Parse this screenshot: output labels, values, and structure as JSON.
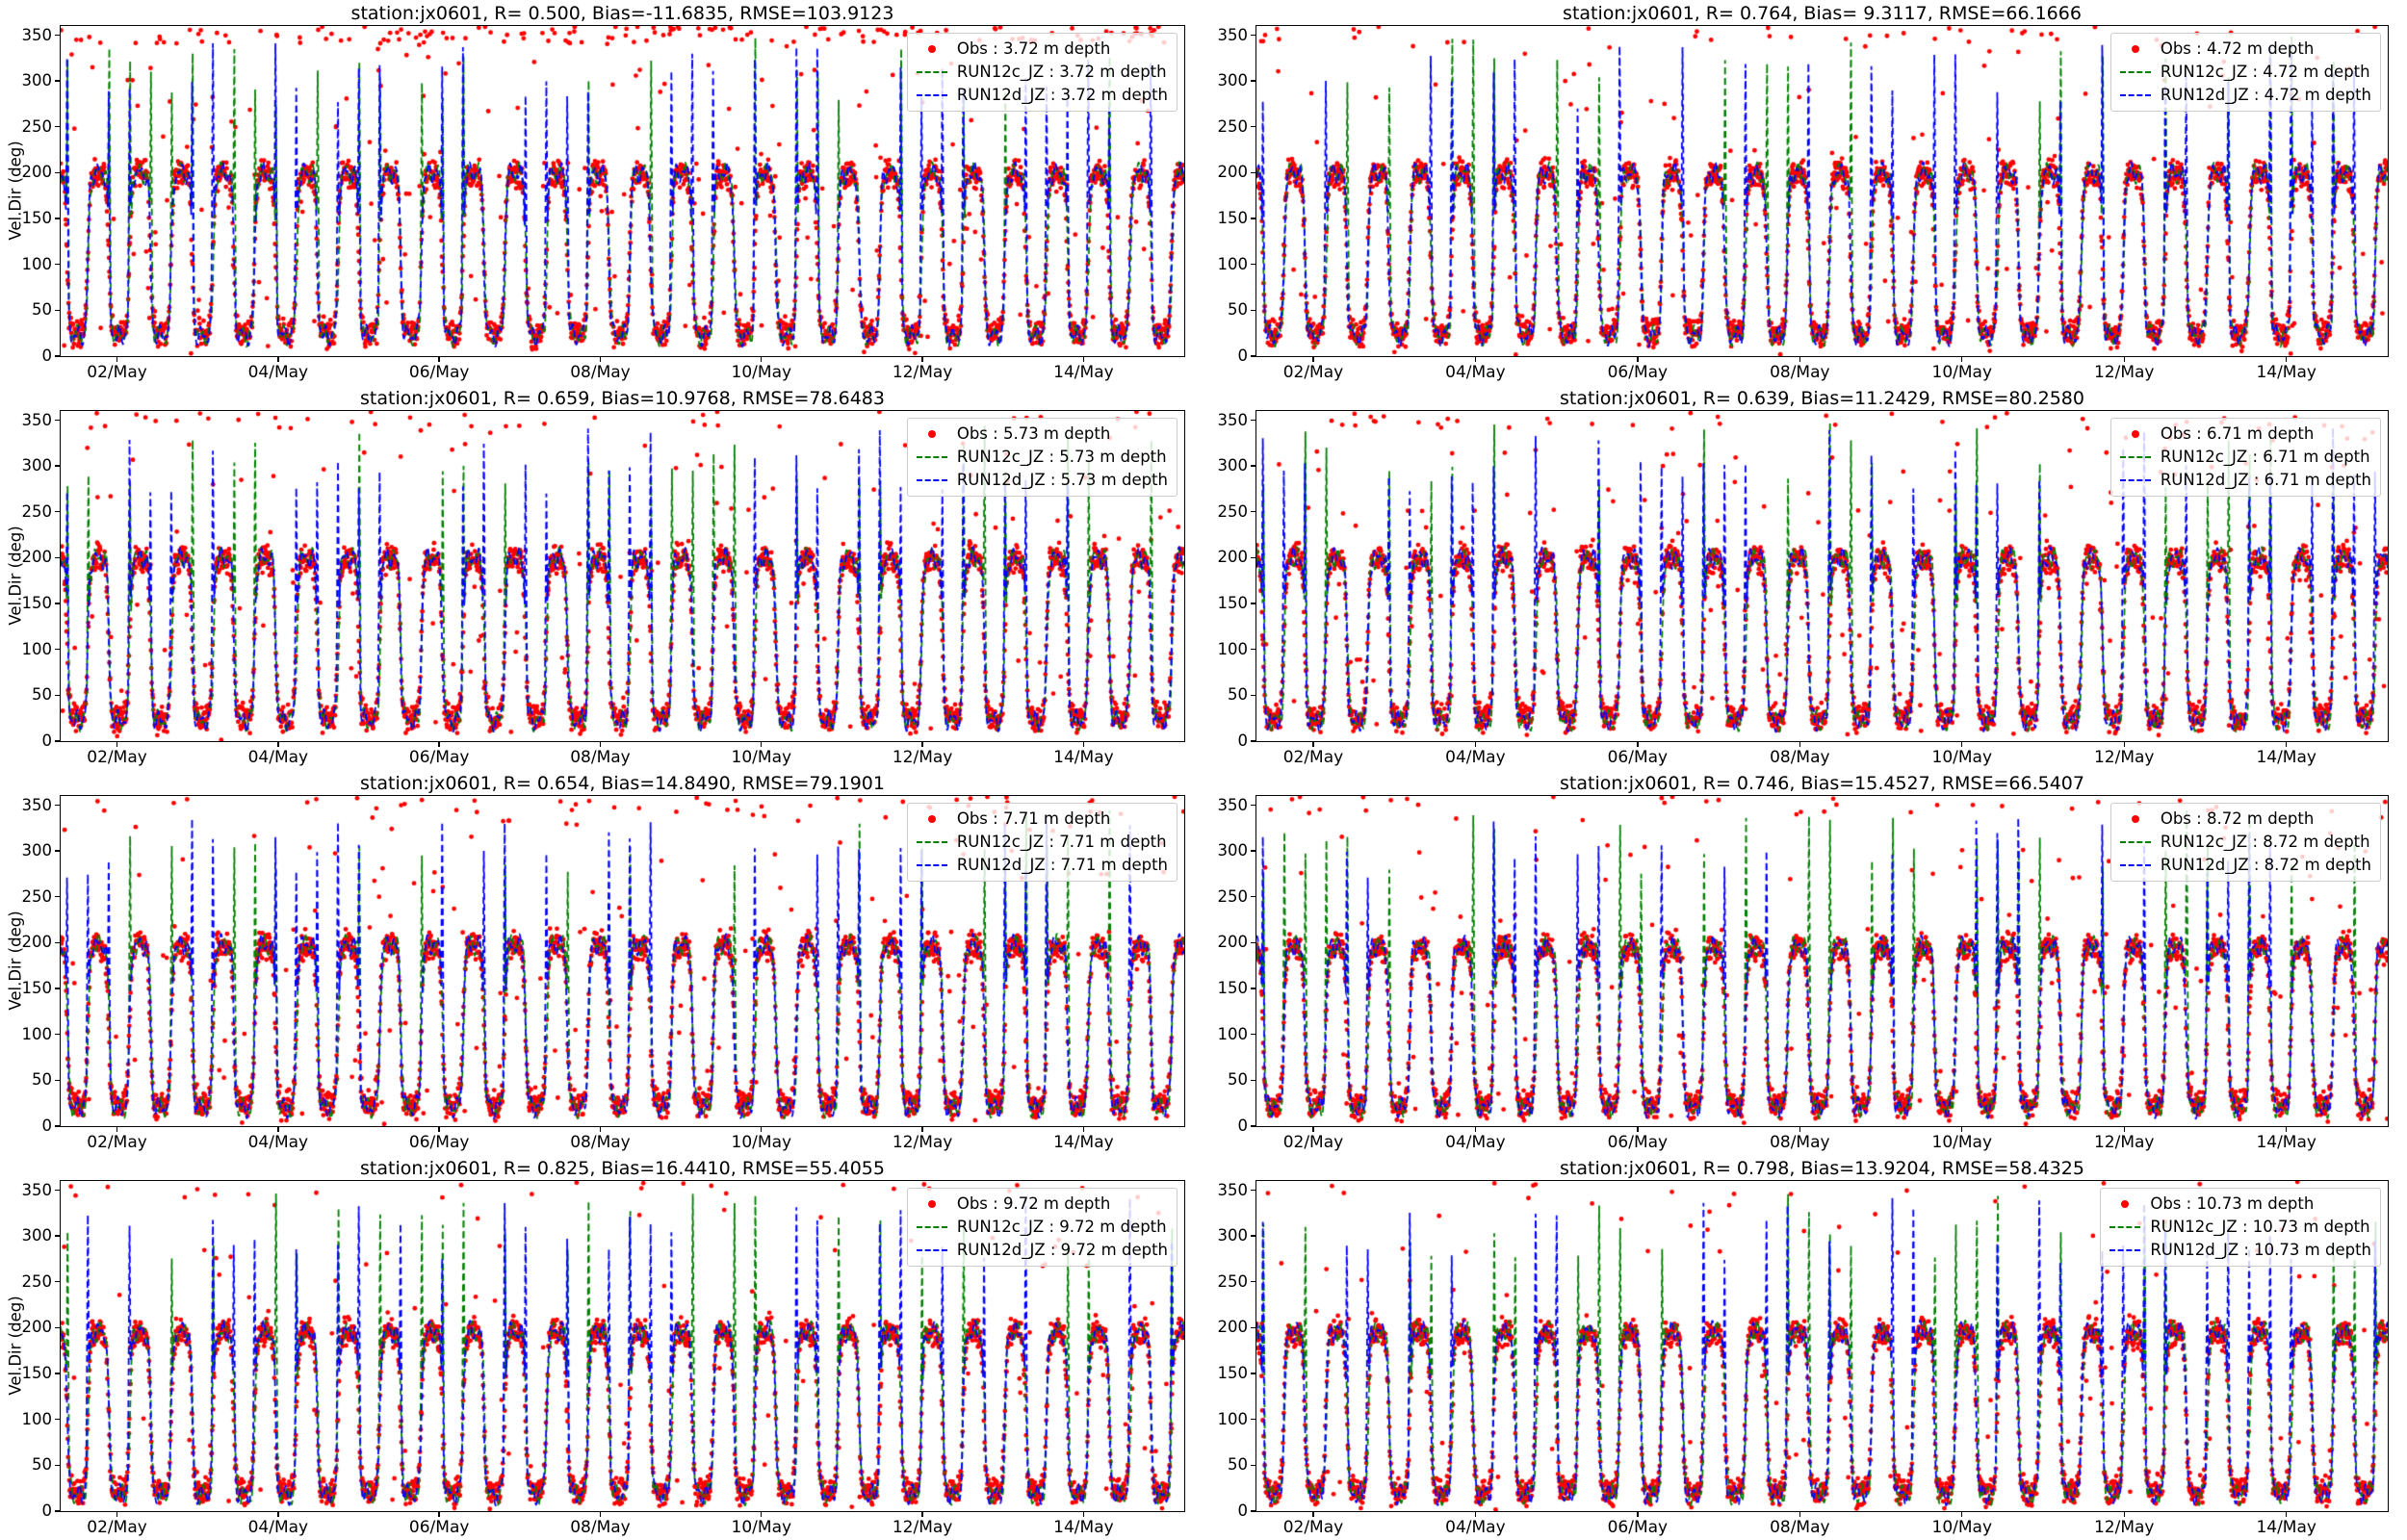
{
  "figure": {
    "background": "#ffffff"
  },
  "chart_data": {
    "common": {
      "type": "line",
      "subtype": "timeseries with scatter observations and two dashed model lines",
      "station": "jx0601",
      "ylabel": "Vel.Dir (deg)",
      "ylim": [
        0,
        360
      ],
      "y_ticks": [
        0,
        50,
        100,
        150,
        200,
        250,
        300,
        350
      ],
      "x_ticks": [
        "02/May",
        "04/May",
        "06/May",
        "08/May",
        "10/May",
        "12/May",
        "14/May"
      ],
      "x_tick_days": [
        1,
        3,
        5,
        7,
        9,
        11,
        13
      ],
      "x_start_day": 0.3,
      "x_span_days": 13.95,
      "grid": false,
      "legend_position": "upper right",
      "colors": {
        "obs": "#ff0000",
        "run12c": "#008000",
        "run12d": "#0000ff"
      }
    },
    "subplots": [
      {
        "title": "station:jx0601, R= 0.500, Bias=-11.6835, RMSE=103.9123",
        "R": 0.5,
        "Bias": -11.6835,
        "RMSE": 103.9123,
        "depth_m": 3.72,
        "series": [
          {
            "name": "Obs : 3.72 m depth",
            "type": "scatter",
            "marker": "dot",
            "color": "#ff0000"
          },
          {
            "name": "RUN12c_JZ : 3.72 m depth",
            "type": "line",
            "linestyle": "dashed",
            "color": "#008000"
          },
          {
            "name": "RUN12d_JZ : 3.72 m depth",
            "type": "line",
            "linestyle": "dashed",
            "color": "#0000ff"
          }
        ],
        "pattern": {
          "high_deg": 200,
          "low_deg": 22,
          "tidal_period_hours": 12.42,
          "spike_peak_deg_range": [
            280,
            355
          ],
          "outlier_rate": 0.085,
          "top_band_rate": 0.045,
          "spike_rate_c": 0.38,
          "spike_rate_d": 0.55
        }
      },
      {
        "title": "station:jx0601, R= 0.764, Bias= 9.3117, RMSE=66.1666",
        "R": 0.764,
        "Bias": 9.3117,
        "RMSE": 66.1666,
        "depth_m": 4.72,
        "series": [
          {
            "name": "Obs : 4.72 m depth",
            "type": "scatter",
            "marker": "dot",
            "color": "#ff0000"
          },
          {
            "name": "RUN12c_JZ : 4.72 m depth",
            "type": "line",
            "linestyle": "dashed",
            "color": "#008000"
          },
          {
            "name": "RUN12d_JZ : 4.72 m depth",
            "type": "line",
            "linestyle": "dashed",
            "color": "#0000ff"
          }
        ],
        "pattern": {
          "high_deg": 200,
          "low_deg": 22,
          "tidal_period_hours": 12.42,
          "spike_peak_deg_range": [
            280,
            355
          ],
          "outlier_rate": 0.045,
          "top_band_rate": 0.012,
          "spike_rate_c": 0.35,
          "spike_rate_d": 0.5
        }
      },
      {
        "title": "station:jx0601, R= 0.659, Bias=10.9768, RMSE=78.6483",
        "R": 0.659,
        "Bias": 10.9768,
        "RMSE": 78.6483,
        "depth_m": 5.73,
        "series": [
          {
            "name": "Obs : 5.73 m depth",
            "type": "scatter",
            "marker": "dot",
            "color": "#ff0000"
          },
          {
            "name": "RUN12c_JZ : 5.73 m depth",
            "type": "line",
            "linestyle": "dashed",
            "color": "#008000"
          },
          {
            "name": "RUN12d_JZ : 5.73 m depth",
            "type": "line",
            "linestyle": "dashed",
            "color": "#0000ff"
          }
        ],
        "pattern": {
          "high_deg": 200,
          "low_deg": 22,
          "tidal_period_hours": 12.42,
          "spike_peak_deg_range": [
            280,
            355
          ],
          "outlier_rate": 0.05,
          "top_band_rate": 0.01,
          "spike_rate_c": 0.42,
          "spike_rate_d": 0.5
        }
      },
      {
        "title": "station:jx0601, R= 0.639, Bias=11.2429, RMSE=80.2580",
        "R": 0.639,
        "Bias": 11.2429,
        "RMSE": 80.258,
        "depth_m": 6.71,
        "series": [
          {
            "name": "Obs : 6.71 m depth",
            "type": "scatter",
            "marker": "dot",
            "color": "#ff0000"
          },
          {
            "name": "RUN12c_JZ : 6.71 m depth",
            "type": "line",
            "linestyle": "dashed",
            "color": "#008000"
          },
          {
            "name": "RUN12d_JZ : 6.71 m depth",
            "type": "line",
            "linestyle": "dashed",
            "color": "#0000ff"
          }
        ],
        "pattern": {
          "high_deg": 200,
          "low_deg": 22,
          "tidal_period_hours": 12.42,
          "spike_peak_deg_range": [
            280,
            355
          ],
          "outlier_rate": 0.055,
          "top_band_rate": 0.012,
          "spike_rate_c": 0.45,
          "spike_rate_d": 0.5
        }
      },
      {
        "title": "station:jx0601, R= 0.654, Bias=14.8490, RMSE=79.1901",
        "R": 0.654,
        "Bias": 14.849,
        "RMSE": 79.1901,
        "depth_m": 7.71,
        "series": [
          {
            "name": "Obs : 7.71 m depth",
            "type": "scatter",
            "marker": "dot",
            "color": "#ff0000"
          },
          {
            "name": "RUN12c_JZ : 7.71 m depth",
            "type": "line",
            "linestyle": "dashed",
            "color": "#008000"
          },
          {
            "name": "RUN12d_JZ : 7.71 m depth",
            "type": "line",
            "linestyle": "dashed",
            "color": "#0000ff"
          }
        ],
        "pattern": {
          "high_deg": 198,
          "low_deg": 20,
          "tidal_period_hours": 12.42,
          "spike_peak_deg_range": [
            280,
            355
          ],
          "outlier_rate": 0.05,
          "top_band_rate": 0.012,
          "spike_rate_c": 0.4,
          "spike_rate_d": 0.5
        }
      },
      {
        "title": "station:jx0601, R= 0.746, Bias=15.4527, RMSE=66.5407",
        "R": 0.746,
        "Bias": 15.4527,
        "RMSE": 66.5407,
        "depth_m": 8.72,
        "series": [
          {
            "name": "Obs : 8.72 m depth",
            "type": "scatter",
            "marker": "dot",
            "color": "#ff0000"
          },
          {
            "name": "RUN12c_JZ : 8.72 m depth",
            "type": "line",
            "linestyle": "dashed",
            "color": "#008000"
          },
          {
            "name": "RUN12d_JZ : 8.72 m depth",
            "type": "line",
            "linestyle": "dashed",
            "color": "#0000ff"
          }
        ],
        "pattern": {
          "high_deg": 196,
          "low_deg": 20,
          "tidal_period_hours": 12.42,
          "spike_peak_deg_range": [
            280,
            355
          ],
          "outlier_rate": 0.045,
          "top_band_rate": 0.01,
          "spike_rate_c": 0.45,
          "spike_rate_d": 0.5
        }
      },
      {
        "title": "station:jx0601, R= 0.825, Bias=16.4410, RMSE=55.4055",
        "R": 0.825,
        "Bias": 16.441,
        "RMSE": 55.4055,
        "depth_m": 9.72,
        "series": [
          {
            "name": "Obs : 9.72 m depth",
            "type": "scatter",
            "marker": "dot",
            "color": "#ff0000"
          },
          {
            "name": "RUN12c_JZ : 9.72 m depth",
            "type": "line",
            "linestyle": "dashed",
            "color": "#008000"
          },
          {
            "name": "RUN12d_JZ : 9.72 m depth",
            "type": "line",
            "linestyle": "dashed",
            "color": "#0000ff"
          }
        ],
        "pattern": {
          "high_deg": 196,
          "low_deg": 18,
          "tidal_period_hours": 12.42,
          "spike_peak_deg_range": [
            280,
            355
          ],
          "outlier_rate": 0.03,
          "top_band_rate": 0.008,
          "spike_rate_c": 0.4,
          "spike_rate_d": 0.45
        }
      },
      {
        "title": "station:jx0601, R= 0.798, Bias=13.9204, RMSE=58.4325",
        "R": 0.798,
        "Bias": 13.9204,
        "RMSE": 58.4325,
        "depth_m": 10.73,
        "series": [
          {
            "name": "Obs : 10.73 m depth",
            "type": "scatter",
            "marker": "dot",
            "color": "#ff0000"
          },
          {
            "name": "RUN12c_JZ : 10.73 m depth",
            "type": "line",
            "linestyle": "dashed",
            "color": "#008000"
          },
          {
            "name": "RUN12d_JZ : 10.73 m depth",
            "type": "line",
            "linestyle": "dashed",
            "color": "#0000ff"
          }
        ],
        "pattern": {
          "high_deg": 196,
          "low_deg": 18,
          "tidal_period_hours": 12.42,
          "spike_peak_deg_range": [
            280,
            355
          ],
          "outlier_rate": 0.035,
          "top_band_rate": 0.008,
          "spike_rate_c": 0.45,
          "spike_rate_d": 0.5
        }
      }
    ]
  }
}
